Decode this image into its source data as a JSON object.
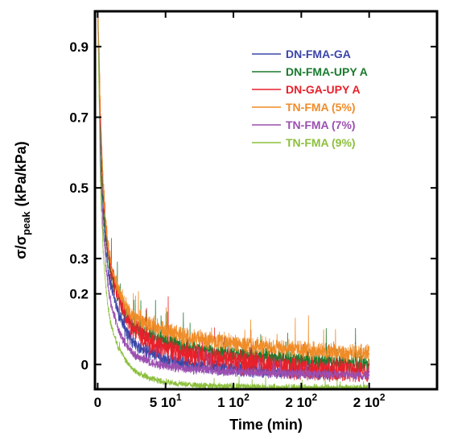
{
  "chart_data": {
    "type": "line",
    "xlabel": "Time (min)",
    "ylabel": "σ/σ",
    "ylabel_subscript": "peak",
    "ylabel_units": "(kPa/kPa)",
    "xlim": [
      -2,
      250
    ],
    "ylim": [
      -0.07,
      1.0
    ],
    "x_ticks": [
      {
        "value": 0,
        "label": "0"
      },
      {
        "value": 50,
        "label": "5 10"
      },
      {
        "value": 100,
        "label": "1 10"
      },
      {
        "value": 150,
        "label": "2 10"
      },
      {
        "value": 200,
        "label": "2 10"
      }
    ],
    "x_tick_exponents": [
      "1",
      "2",
      "2",
      "2"
    ],
    "y_ticks": [
      {
        "value": 0,
        "label": "0"
      },
      {
        "value": 0.2,
        "label": "0.2"
      },
      {
        "value": 0.3,
        "label": "0.3"
      },
      {
        "value": 0.5,
        "label": "0.5"
      },
      {
        "value": 0.7,
        "label": "0.7"
      },
      {
        "value": 0.9,
        "label": "0.9"
      }
    ],
    "legend_position": "top-right",
    "series": [
      {
        "name": "DN-FMA-GA",
        "color": "#3a46a8",
        "end_x": 175,
        "x": [
          0,
          1,
          2,
          4,
          6,
          8,
          10,
          15,
          20,
          25,
          30,
          40,
          50,
          60,
          80,
          100,
          125,
          150,
          175
        ],
        "y": [
          1.0,
          0.82,
          0.6,
          0.42,
          0.33,
          0.26,
          0.22,
          0.15,
          0.1,
          0.07,
          0.05,
          0.03,
          0.015,
          0.005,
          -0.005,
          -0.012,
          -0.018,
          -0.02,
          -0.022
        ]
      },
      {
        "name": "DN-FMA-UPY A",
        "color": "#1a7a2e",
        "end_x": 200,
        "x": [
          0,
          1,
          2,
          4,
          6,
          8,
          10,
          15,
          20,
          25,
          30,
          40,
          50,
          60,
          80,
          100,
          125,
          150,
          175,
          200
        ],
        "y": [
          1.0,
          0.86,
          0.66,
          0.46,
          0.36,
          0.3,
          0.26,
          0.19,
          0.15,
          0.12,
          0.1,
          0.08,
          0.065,
          0.055,
          0.04,
          0.03,
          0.02,
          0.012,
          0.006,
          0.0
        ]
      },
      {
        "name": "DN-GA-UPY A",
        "color": "#e8202a",
        "end_x": 200,
        "x": [
          0,
          1,
          2,
          4,
          6,
          8,
          10,
          15,
          20,
          25,
          30,
          40,
          50,
          60,
          80,
          100,
          125,
          150,
          175,
          200
        ],
        "y": [
          1.0,
          0.88,
          0.7,
          0.5,
          0.39,
          0.32,
          0.27,
          0.19,
          0.14,
          0.11,
          0.09,
          0.06,
          0.045,
          0.035,
          0.02,
          0.01,
          0.0,
          -0.01,
          -0.015,
          -0.02
        ]
      },
      {
        "name": "TN-FMA (5%)",
        "color": "#f08c28",
        "end_x": 200,
        "x": [
          0,
          1,
          2,
          4,
          6,
          8,
          10,
          15,
          20,
          25,
          30,
          40,
          50,
          60,
          80,
          100,
          125,
          150,
          175,
          200
        ],
        "y": [
          1.0,
          0.9,
          0.72,
          0.52,
          0.4,
          0.33,
          0.28,
          0.21,
          0.17,
          0.14,
          0.13,
          0.11,
          0.095,
          0.085,
          0.07,
          0.06,
          0.05,
          0.04,
          0.035,
          0.03
        ]
      },
      {
        "name": "TN-FMA (7%)",
        "color": "#9b4fb0",
        "end_x": 200,
        "x": [
          0,
          1,
          2,
          4,
          6,
          8,
          10,
          15,
          20,
          25,
          30,
          40,
          50,
          60,
          80,
          100,
          125,
          150,
          175,
          200
        ],
        "y": [
          1.0,
          0.8,
          0.56,
          0.38,
          0.28,
          0.21,
          0.17,
          0.1,
          0.06,
          0.035,
          0.02,
          0.005,
          -0.005,
          -0.01,
          -0.015,
          -0.02,
          -0.024,
          -0.027,
          -0.029,
          -0.03
        ]
      },
      {
        "name": "TN-FMA (9%)",
        "color": "#8cbf3c",
        "end_x": 200,
        "x": [
          0,
          1,
          2,
          4,
          6,
          8,
          10,
          15,
          20,
          25,
          30,
          40,
          50,
          60,
          80,
          100,
          125,
          150,
          175,
          200
        ],
        "y": [
          1.0,
          0.76,
          0.5,
          0.32,
          0.22,
          0.15,
          0.11,
          0.05,
          0.015,
          -0.01,
          -0.025,
          -0.04,
          -0.05,
          -0.055,
          -0.06,
          -0.062,
          -0.064,
          -0.065,
          -0.066,
          -0.067
        ]
      }
    ]
  }
}
